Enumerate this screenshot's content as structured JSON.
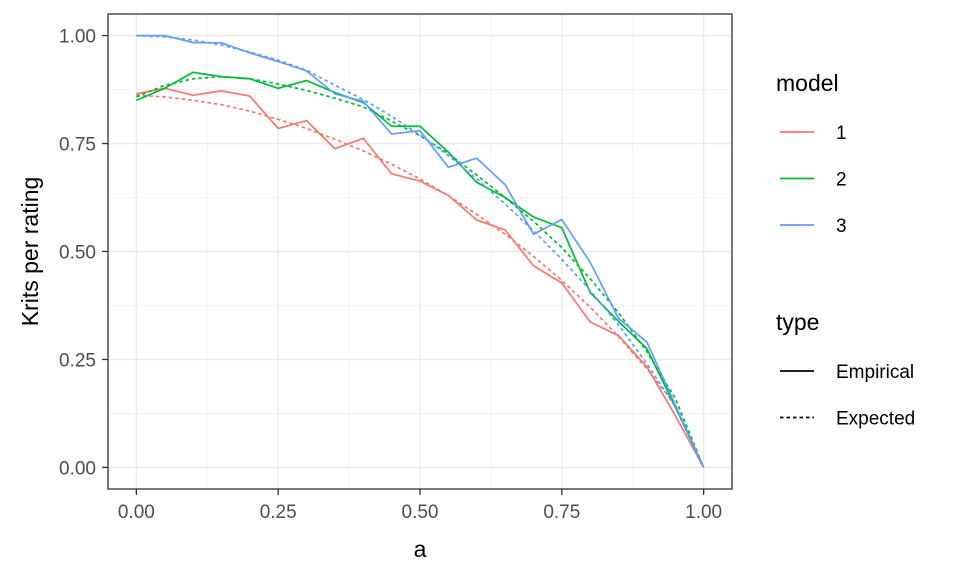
{
  "chart_data": {
    "type": "line",
    "xlabel": "a",
    "ylabel": "Krits per rating",
    "xlim": [
      -0.05,
      1.05
    ],
    "ylim": [
      -0.05,
      1.05
    ],
    "xticks": [
      0.0,
      0.25,
      0.5,
      0.75,
      1.0
    ],
    "xtick_labels": [
      "0.00",
      "0.25",
      "0.50",
      "0.75",
      "1.00"
    ],
    "yticks": [
      0.0,
      0.25,
      0.5,
      0.75,
      1.0
    ],
    "ytick_labels": [
      "0.00",
      "0.25",
      "0.50",
      "0.75",
      "1.00"
    ],
    "grid": true,
    "legend_position": "right",
    "x": [
      0.0,
      0.05,
      0.1,
      0.15,
      0.2,
      0.25,
      0.3,
      0.35,
      0.4,
      0.45,
      0.5,
      0.55,
      0.6,
      0.65,
      0.7,
      0.75,
      0.8,
      0.85,
      0.9,
      0.95,
      1.0
    ],
    "series": [
      {
        "model": "1",
        "type": "Empirical",
        "color": "#F8766D",
        "dash": "solid",
        "values": [
          0.865,
          0.878,
          0.862,
          0.872,
          0.86,
          0.785,
          0.803,
          0.738,
          0.762,
          0.68,
          0.663,
          0.63,
          0.573,
          0.55,
          0.467,
          0.427,
          0.337,
          0.305,
          0.233,
          0.12,
          0.0
        ]
      },
      {
        "model": "1",
        "type": "Expected",
        "color": "#F8766D",
        "dash": "dashed",
        "values": [
          0.862,
          0.858,
          0.85,
          0.84,
          0.825,
          0.806,
          0.785,
          0.76,
          0.733,
          0.702,
          0.668,
          0.629,
          0.586,
          0.54,
          0.489,
          0.433,
          0.371,
          0.303,
          0.228,
          0.145,
          0.0
        ]
      },
      {
        "model": "2",
        "type": "Empirical",
        "color": "#00BA38",
        "dash": "solid",
        "values": [
          0.85,
          0.878,
          0.915,
          0.905,
          0.9,
          0.878,
          0.896,
          0.868,
          0.845,
          0.79,
          0.79,
          0.73,
          0.66,
          0.625,
          0.58,
          0.555,
          0.405,
          0.338,
          0.275,
          0.14,
          0.0
        ]
      },
      {
        "model": "2",
        "type": "Expected",
        "color": "#00BA38",
        "dash": "dashed",
        "values": [
          0.858,
          0.885,
          0.9,
          0.905,
          0.9,
          0.888,
          0.873,
          0.855,
          0.835,
          0.802,
          0.768,
          0.727,
          0.677,
          0.625,
          0.57,
          0.509,
          0.437,
          0.358,
          0.268,
          0.16,
          0.0
        ]
      },
      {
        "model": "3",
        "type": "Empirical",
        "color": "#619CFF",
        "dash": "solid",
        "values": [
          1.0,
          1.0,
          0.984,
          0.983,
          0.96,
          0.94,
          0.918,
          0.865,
          0.848,
          0.772,
          0.78,
          0.695,
          0.716,
          0.655,
          0.54,
          0.574,
          0.475,
          0.345,
          0.29,
          0.145,
          0.0
        ]
      },
      {
        "model": "3",
        "type": "Expected",
        "color": "#619CFF",
        "dash": "dashed",
        "values": [
          1.0,
          0.997,
          0.99,
          0.978,
          0.962,
          0.943,
          0.92,
          0.885,
          0.852,
          0.813,
          0.77,
          0.722,
          0.668,
          0.61,
          0.548,
          0.482,
          0.41,
          0.33,
          0.24,
          0.14,
          0.0
        ]
      }
    ],
    "legend": {
      "model": {
        "title": "model",
        "items": [
          {
            "label": "1",
            "color": "#F8766D"
          },
          {
            "label": "2",
            "color": "#00BA38"
          },
          {
            "label": "3",
            "color": "#619CFF"
          }
        ]
      },
      "type": {
        "title": "type",
        "items": [
          {
            "label": "Empirical",
            "dash": "solid"
          },
          {
            "label": "Expected",
            "dash": "dashed"
          }
        ]
      }
    }
  }
}
